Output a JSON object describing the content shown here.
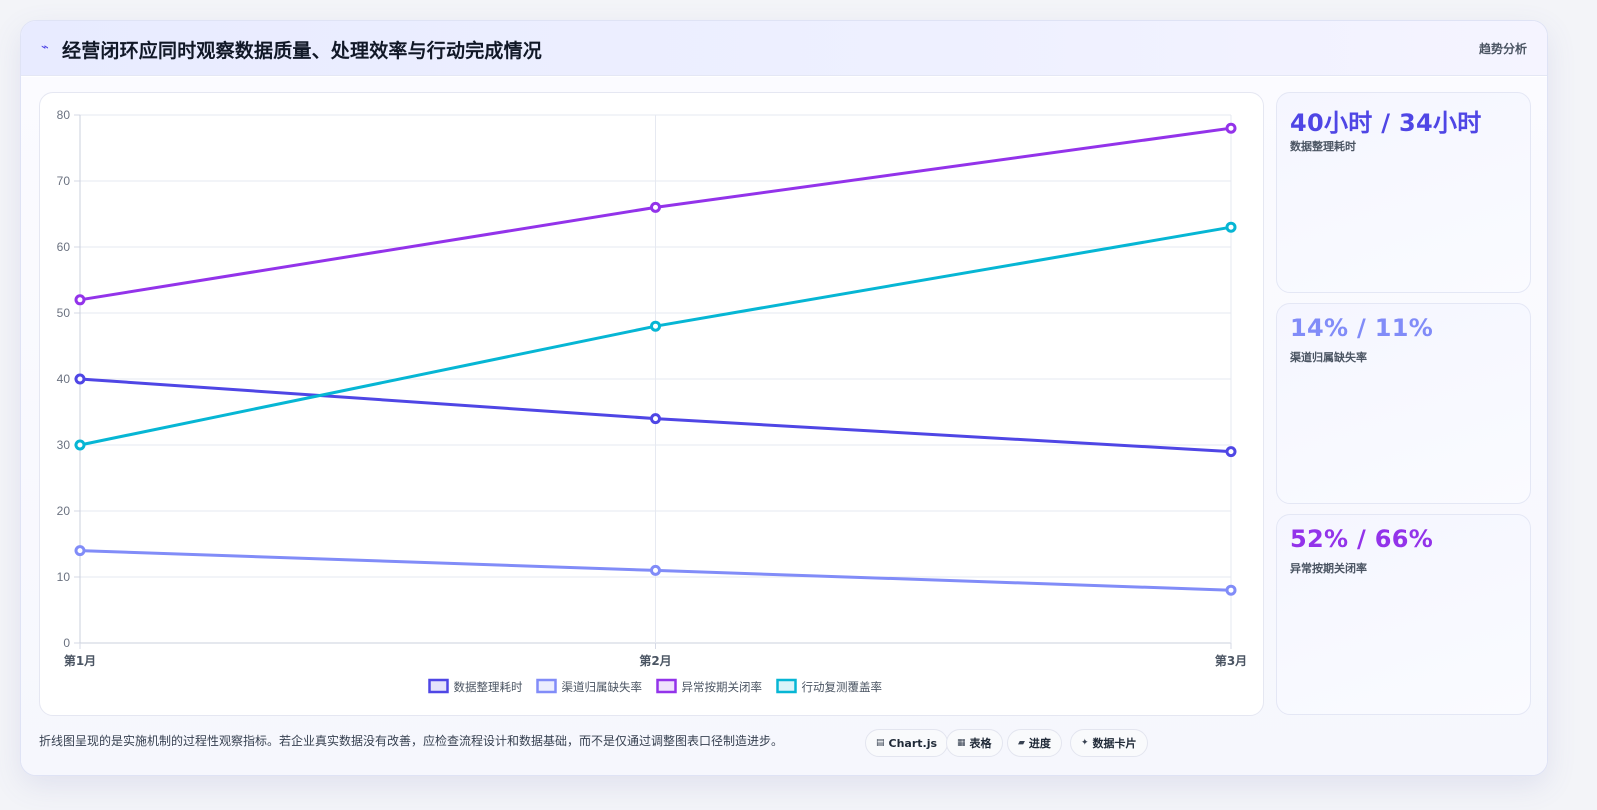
{
  "header": {
    "icon": "lightning-icon",
    "title": "经营闭环应同时观察数据质量、处理效率与行动完成情况",
    "tag": "趋势分析"
  },
  "kpis": [
    {
      "value": "40小时 / 34小时",
      "label": "数据整理耗时",
      "color": "#4f46e5"
    },
    {
      "value": "14% / 11%",
      "label": "渠道归属缺失率",
      "color": "#818cf8"
    },
    {
      "value": "52% / 66%",
      "label": "异常按期关闭率",
      "color": "#9333ea"
    }
  ],
  "footnote": "折线图呈现的是实施机制的过程性观察指标。若企业真实数据没有改善，应检查流程设计和数据基础，而不是仅通过调整图表口径制造进步。",
  "buttons": [
    {
      "icon": "chart-icon",
      "glyph": "▤",
      "label": "Chart.js"
    },
    {
      "icon": "table-icon",
      "glyph": "▦",
      "label": "表格"
    },
    {
      "icon": "progress-icon",
      "glyph": "▰",
      "label": "进度"
    },
    {
      "icon": "sparkle-icon",
      "glyph": "✦",
      "label": "数据卡片"
    }
  ],
  "chart_data": {
    "type": "line",
    "categories": [
      "第1月",
      "第2月",
      "第3月"
    ],
    "ylim": [
      0,
      80
    ],
    "yticks": [
      0,
      10,
      20,
      30,
      40,
      50,
      60,
      70,
      80
    ],
    "grid": true,
    "legend_position": "bottom",
    "series": [
      {
        "name": "数据整理耗时",
        "values": [
          40,
          34,
          29
        ],
        "color": "#4f46e5"
      },
      {
        "name": "渠道归属缺失率",
        "values": [
          14,
          11,
          8
        ],
        "color": "#818cf8"
      },
      {
        "name": "异常按期关闭率",
        "values": [
          52,
          66,
          78
        ],
        "color": "#9333ea"
      },
      {
        "name": "行动复测覆盖率",
        "values": [
          30,
          48,
          63
        ],
        "color": "#06b6d4"
      }
    ]
  }
}
